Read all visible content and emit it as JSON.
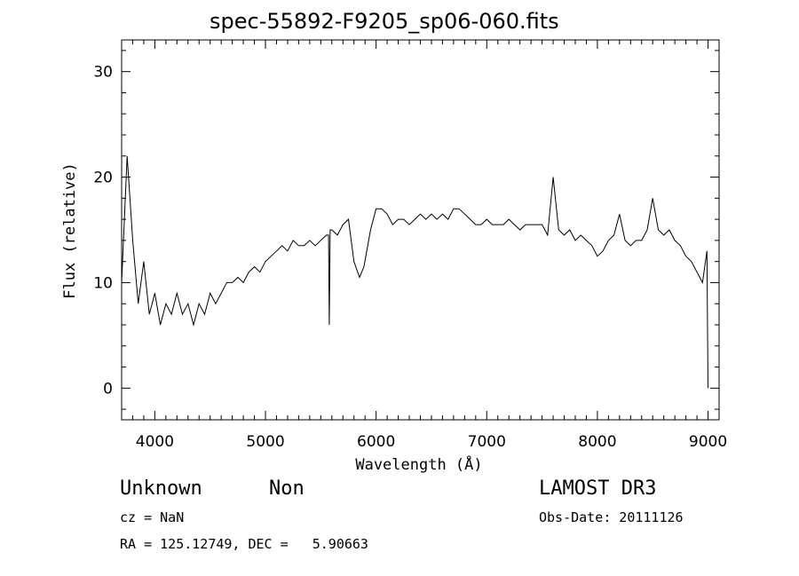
{
  "chart_data": {
    "type": "line",
    "title": "spec-55892-F9205_sp06-060.fits",
    "xlabel": "Wavelength (Å)",
    "ylabel": "Flux (relative)",
    "xlim": [
      3700,
      9100
    ],
    "ylim": [
      -3,
      33
    ],
    "xticks": [
      4000,
      5000,
      6000,
      7000,
      8000,
      9000
    ],
    "yticks": [
      0,
      10,
      20,
      30
    ],
    "grid": false,
    "series": [
      {
        "x": [
          3700,
          3750,
          3800,
          3850,
          3900,
          3950,
          4000,
          4050,
          4100,
          4150,
          4200,
          4250,
          4300,
          4350,
          4400,
          4450,
          4500,
          4550,
          4600,
          4650,
          4700,
          4750,
          4800,
          4850,
          4900,
          4950,
          5000,
          5050,
          5100,
          5150,
          5200,
          5250,
          5300,
          5350,
          5400,
          5450,
          5500,
          5550,
          5570,
          5577,
          5585,
          5600,
          5650,
          5700,
          5750,
          5800,
          5850,
          5890,
          5950,
          6000,
          6050,
          6100,
          6150,
          6200,
          6250,
          6300,
          6350,
          6400,
          6450,
          6500,
          6550,
          6600,
          6650,
          6700,
          6750,
          6800,
          6850,
          6900,
          6950,
          7000,
          7050,
          7100,
          7150,
          7200,
          7250,
          7300,
          7350,
          7400,
          7450,
          7500,
          7550,
          7600,
          7650,
          7700,
          7750,
          7800,
          7850,
          7900,
          7950,
          8000,
          8050,
          8100,
          8150,
          8200,
          8250,
          8300,
          8350,
          8400,
          8450,
          8500,
          8550,
          8600,
          8650,
          8700,
          8750,
          8800,
          8850,
          8900,
          8950,
          8990,
          9000
        ],
        "y": [
          10,
          22,
          14,
          8,
          12,
          7,
          9,
          6,
          8,
          7,
          9,
          7,
          8,
          6,
          8,
          7,
          9,
          8,
          9,
          10,
          10,
          10.5,
          10,
          11,
          11.5,
          11,
          12,
          12.5,
          13,
          13.5,
          13,
          14,
          13.5,
          13.5,
          14,
          13.5,
          14,
          14.5,
          14.5,
          6,
          15,
          15,
          14.5,
          15.5,
          16,
          12,
          10.5,
          11.5,
          15,
          17,
          17,
          16.5,
          15.5,
          16,
          16,
          15.5,
          16,
          16.5,
          16,
          16.5,
          16,
          16.5,
          16,
          17,
          17,
          16.5,
          16,
          15.5,
          15.5,
          16,
          15.5,
          15.5,
          15.5,
          16,
          15.5,
          15,
          15.5,
          15.5,
          15.5,
          15.5,
          14.5,
          20,
          15,
          14.5,
          15,
          14,
          14.5,
          14,
          13.5,
          12.5,
          13,
          14,
          14.5,
          16.5,
          14,
          13.5,
          14,
          14,
          15,
          18,
          15,
          14.5,
          15,
          14,
          13.5,
          12.5,
          12,
          11,
          10,
          13,
          0
        ]
      }
    ]
  },
  "footer": {
    "class_label": "Unknown",
    "subclass_label": "Non",
    "survey": "LAMOST DR3",
    "cz": "cz = NaN",
    "obs_date": "Obs-Date: 20111126",
    "radec": "RA = 125.12749, DEC =   5.90663"
  }
}
